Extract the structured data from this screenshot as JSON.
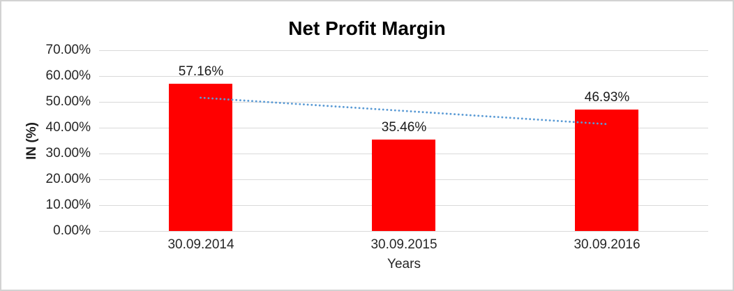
{
  "chart_data": {
    "type": "bar",
    "title": "Net Profit Margin",
    "xlabel": "Years",
    "ylabel": "IN (%)",
    "categories": [
      "30.09.2014",
      "30.09.2015",
      "30.09.2016"
    ],
    "values": [
      57.16,
      35.46,
      46.93
    ],
    "value_labels": [
      "57.16%",
      "35.46%",
      "46.93%"
    ],
    "ylim": [
      0,
      70
    ],
    "yticks": [
      0,
      10,
      20,
      30,
      40,
      50,
      60,
      70
    ],
    "ytick_labels": [
      "0.00%",
      "10.00%",
      "20.00%",
      "30.00%",
      "40.00%",
      "50.00%",
      "60.00%",
      "70.00%"
    ],
    "grid": true,
    "legend": "none",
    "bar_color": "#ff0000",
    "trendline": {
      "type": "linear",
      "style": "dotted",
      "color": "#5b9bd5",
      "start_value": 51.63,
      "end_value": 41.4
    }
  },
  "frame": {
    "border_color": "#d2d2d2",
    "background_color": "#ffffff",
    "gridline_color": "#d9d9d9"
  }
}
